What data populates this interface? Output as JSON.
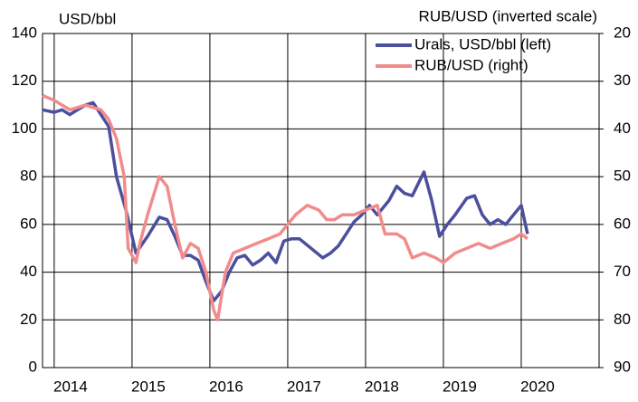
{
  "chart_data": {
    "type": "line",
    "ylabel": "USD/bbl",
    "y2label": "RUB/USD (inverted scale)",
    "xlim": [
      2013.85,
      2021
    ],
    "xticks": [
      2014,
      2015,
      2016,
      2017,
      2018,
      2019,
      2020
    ],
    "ylim": [
      0,
      140
    ],
    "yticks": [
      0,
      20,
      40,
      60,
      80,
      100,
      120,
      140
    ],
    "y2lim": [
      90,
      20
    ],
    "y2ticks": [
      20,
      30,
      40,
      50,
      60,
      70,
      80,
      90
    ],
    "grid": true,
    "legend": "upper right",
    "series": [
      {
        "name": "Urals, USD/bbl (left)",
        "color": "#4b4f9e",
        "x": [
          2013.85,
          2014.0,
          2014.1,
          2014.2,
          2014.3,
          2014.4,
          2014.5,
          2014.6,
          2014.7,
          2014.8,
          2014.93,
          2015.05,
          2015.2,
          2015.35,
          2015.45,
          2015.55,
          2015.65,
          2015.75,
          2015.85,
          2015.95,
          2016.05,
          2016.15,
          2016.25,
          2016.35,
          2016.45,
          2016.55,
          2016.65,
          2016.75,
          2016.85,
          2016.95,
          2017.05,
          2017.15,
          2017.3,
          2017.45,
          2017.55,
          2017.65,
          2017.75,
          2017.85,
          2017.95,
          2018.05,
          2018.15,
          2018.3,
          2018.4,
          2018.5,
          2018.6,
          2018.75,
          2018.85,
          2018.95,
          2019.05,
          2019.15,
          2019.3,
          2019.4,
          2019.5,
          2019.6,
          2019.7,
          2019.8,
          2019.9,
          2020.0,
          2020.08
        ],
        "values": [
          108,
          107,
          108,
          106,
          108,
          110,
          111,
          106,
          101,
          80,
          65,
          48,
          55,
          63,
          62,
          55,
          47,
          47,
          45,
          36,
          28,
          32,
          40,
          46,
          47,
          43,
          45,
          48,
          44,
          53,
          54,
          54,
          50,
          46,
          48,
          51,
          56,
          61,
          64,
          68,
          64,
          70,
          76,
          73,
          72,
          82,
          70,
          55,
          60,
          64,
          71,
          72,
          64,
          60,
          62,
          60,
          64,
          68,
          56
        ]
      },
      {
        "name": "RUB/USD (right)",
        "color": "#f28c8c",
        "axis": "y2",
        "x": [
          2013.85,
          2014.0,
          2014.2,
          2014.4,
          2014.6,
          2014.7,
          2014.8,
          2014.9,
          2014.95,
          2015.05,
          2015.1,
          2015.2,
          2015.35,
          2015.45,
          2015.55,
          2015.65,
          2015.75,
          2015.85,
          2015.95,
          2016.05,
          2016.1,
          2016.2,
          2016.3,
          2016.45,
          2016.6,
          2016.75,
          2016.9,
          2017.0,
          2017.1,
          2017.25,
          2017.4,
          2017.5,
          2017.6,
          2017.7,
          2017.85,
          2018.0,
          2018.15,
          2018.25,
          2018.4,
          2018.5,
          2018.6,
          2018.75,
          2018.9,
          2019.0,
          2019.15,
          2019.3,
          2019.45,
          2019.6,
          2019.75,
          2019.9,
          2020.0,
          2020.08
        ],
        "values": [
          33,
          34,
          36,
          35,
          36,
          38,
          42,
          50,
          65,
          68,
          64,
          58,
          50,
          52,
          60,
          67,
          64,
          65,
          70,
          78,
          80,
          70,
          66,
          65,
          64,
          63,
          62,
          60,
          58,
          56,
          57,
          59,
          59,
          58,
          58,
          57,
          56,
          62,
          62,
          63,
          67,
          66,
          67,
          68,
          66,
          65,
          64,
          65,
          64,
          63,
          62,
          63
        ]
      }
    ]
  }
}
